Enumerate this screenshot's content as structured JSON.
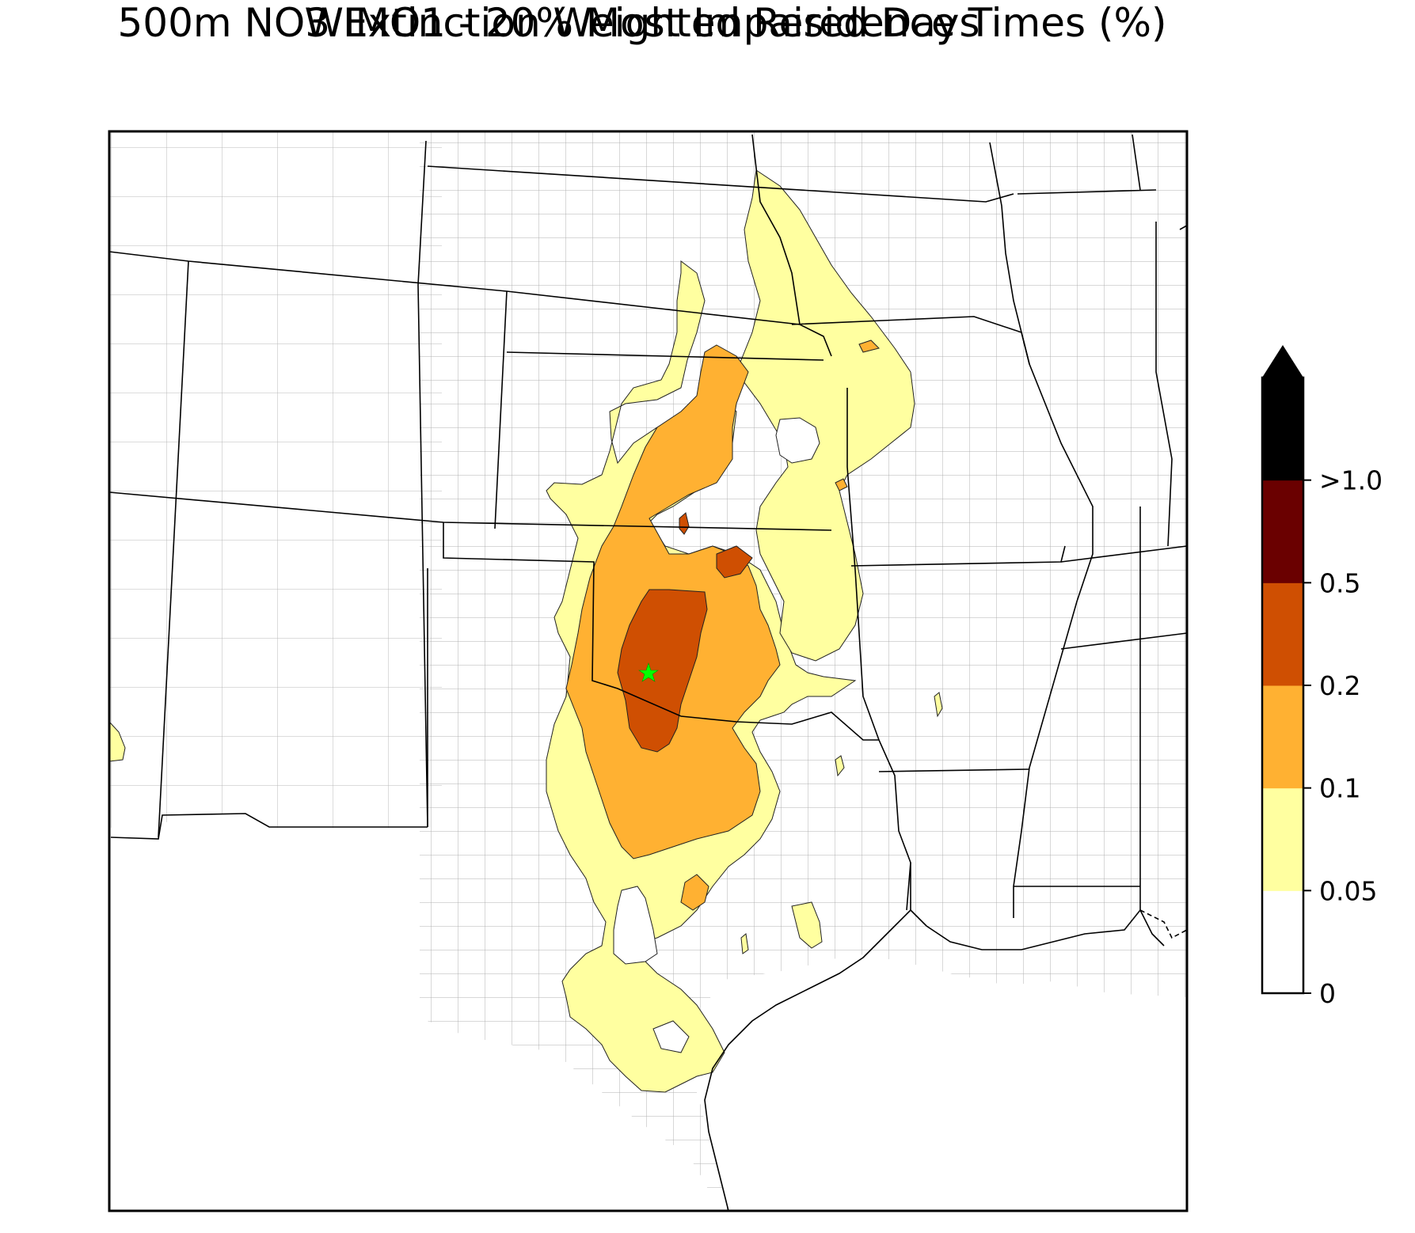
{
  "title": "WIMO1 - 20% Most Impaired Days",
  "subtitle": "500m NO3 Extinction Weighted Residence Times (%)",
  "colorbar": {
    "levels": [
      {
        "label": "0",
        "color": "#ffffff"
      },
      {
        "label": "0.05",
        "color": "#ffffa0"
      },
      {
        "label": "0.1",
        "color": "#ffb132"
      },
      {
        "label": "0.2",
        "color": "#cf4f02"
      },
      {
        "label": "0.5",
        "color": "#6a0000"
      },
      {
        "label": ">1.0",
        "color": "#000000"
      }
    ],
    "extend": "max"
  },
  "map": {
    "site_marker_color": "#00ff00",
    "state_line_color": "#000000",
    "county_line_color": "#a0a0a0"
  }
}
